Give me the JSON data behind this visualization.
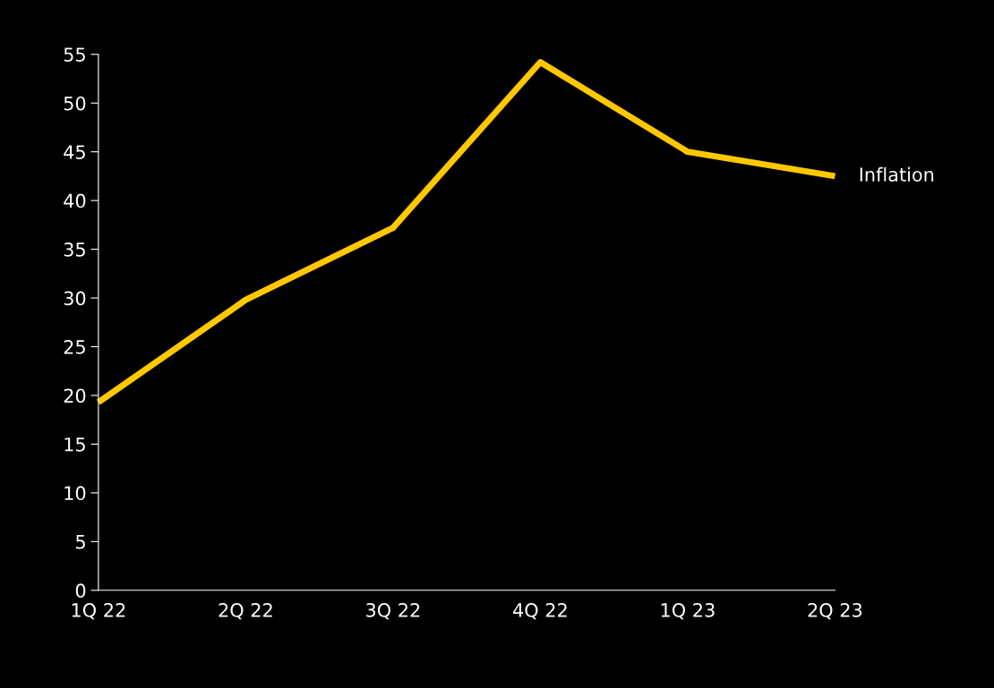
{
  "chart_data": {
    "type": "line",
    "categories": [
      "1Q 22",
      "2Q 22",
      "3Q 22",
      "4Q 22",
      "1Q 23",
      "2Q 23"
    ],
    "series": [
      {
        "name": "Inflation",
        "color": "#ffc800",
        "values": [
          19.3,
          29.8,
          37.2,
          54.2,
          45.0,
          42.5
        ]
      }
    ],
    "ylim": [
      0,
      55
    ],
    "yticks": [
      0,
      5,
      10,
      15,
      20,
      25,
      30,
      35,
      40,
      45,
      50,
      55
    ],
    "grid": false,
    "legend": false,
    "marker": "none",
    "line_style": "solid"
  }
}
